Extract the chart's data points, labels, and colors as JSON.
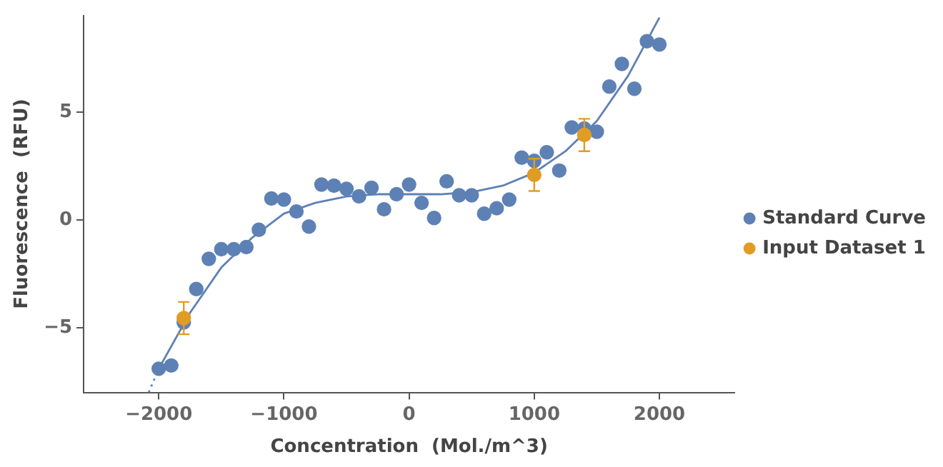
{
  "chart_data": {
    "type": "scatter",
    "xlabel": "Concentration  (Mol./m^3)",
    "ylabel": "Fluorescence  (RFU)",
    "xlim": [
      -2600,
      2600
    ],
    "ylim": [
      -8,
      9.5
    ],
    "xticks": [
      {
        "value": -2000,
        "label": "−2000"
      },
      {
        "value": -1000,
        "label": "−1000"
      },
      0,
      1000,
      2000
    ],
    "yticks": [
      {
        "value": -5,
        "label": "−5"
      },
      0,
      5
    ],
    "grid": false,
    "legend": "right",
    "marker": "circle",
    "series": [
      {
        "name": "Standard Curve",
        "color": "#5e81b5",
        "x": [
          -2000,
          -1900,
          -1800,
          -1700,
          -1600,
          -1500,
          -1400,
          -1300,
          -1200,
          -1100,
          -1000,
          -900,
          -800,
          -700,
          -600,
          -500,
          -400,
          -300,
          -200,
          -100,
          0,
          100,
          200,
          300,
          400,
          500,
          600,
          700,
          800,
          900,
          1000,
          1100,
          1200,
          1300,
          1400,
          1500,
          1600,
          1700,
          1800,
          1900,
          2000
        ],
        "values": [
          -6.9,
          -6.75,
          -4.75,
          -3.2,
          -1.8,
          -1.35,
          -1.35,
          -1.25,
          -0.45,
          1.0,
          0.95,
          0.4,
          -0.3,
          1.65,
          1.6,
          1.45,
          1.1,
          1.5,
          0.5,
          1.2,
          1.65,
          0.8,
          0.1,
          1.8,
          1.15,
          1.15,
          0.3,
          0.55,
          0.95,
          2.9,
          2.75,
          3.15,
          2.3,
          4.3,
          4.25,
          4.1,
          6.2,
          7.25,
          6.1,
          8.3,
          8.15
        ]
      },
      {
        "type": "line",
        "color": "#5e81b5",
        "marker": "none",
        "line_style": "solid",
        "x": [
          -2000,
          -1750,
          -1500,
          -1250,
          -1000,
          -750,
          -500,
          -250,
          0,
          250,
          500,
          750,
          1000,
          1250,
          1500,
          1750,
          2000
        ],
        "values": [
          -6.9,
          -4.3,
          -2.2,
          -0.8,
          0.3,
          0.8,
          1.1,
          1.2,
          1.2,
          1.2,
          1.3,
          1.6,
          2.2,
          3.2,
          4.6,
          6.7,
          9.4
        ]
      },
      {
        "type": "line",
        "color": "#5e81b5",
        "marker": "none",
        "line_style": "dotted",
        "x": [
          -2080,
          -2000
        ],
        "values": [
          -8,
          -6.9
        ]
      },
      {
        "name": "Input Dataset 1",
        "color": "#e19c24",
        "x": [
          -1800,
          1000,
          1400
        ],
        "values": [
          -4.55,
          2.1,
          3.95
        ],
        "errors": [
          0.75,
          0.75,
          0.75
        ]
      }
    ]
  }
}
